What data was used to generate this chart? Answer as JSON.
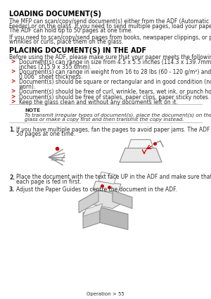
{
  "page_bg": "#ffffff",
  "title1": "LOADING DOCUMENT(S)",
  "para1_lines": [
    "The MFP can scan/copy/send document(s) either from the ADF (Automatic Document",
    "Feeder) or on the glass. If you need to send multiple pages, load your papers in the ADF.",
    "The ADF can hold up to 50 pages at one time."
  ],
  "para2_lines": [
    "If you need to scan/copy/send pages from books, newspaper clippings, or paper with",
    "wrinkles or curls, place them on the glass."
  ],
  "title2": "PLACING DOCUMENT(S) IN THE ADF",
  "before_list": "Before using the ADF, please make sure that your paper meets the following specifications:",
  "bullet_lines": [
    [
      "Document(s) can range in size from 4.5 x 5.5 inches (114.3 x 139.7mm) to 8.5 x 14",
      "inches (215.9 x 355.6mm)."
    ],
    [
      "Document(s) can range in weight from 16 to 28 lbs (60 - 120 g/m²) and 0.002” to",
      "0.006” sheet thickness."
    ],
    [
      "Document(s) should be square or rectangular and in good condition (not fragile or",
      "worn)."
    ],
    [
      "Document(s) should be free of curl, wrinkle, tears, wet ink, or punch holes."
    ],
    [
      "Document(s) should be free of staples, paper clips, paper sticky notes."
    ],
    [
      "Keep the glass clean and without any documents left on it."
    ]
  ],
  "note_title": "NOTE",
  "note_lines": [
    "To transmit irregular types of document(s), place the document(s) on the",
    "glass or make a copy first and then transmit the copy instead."
  ],
  "step1_lines": [
    "If you have multiple pages, fan the pages to avoid paper jams. The ADF holds up to",
    "50 pages at one time."
  ],
  "step2_lines": [
    "Place the document with the text face UP in the ADF and make sure that the top of",
    "each page is fed in first."
  ],
  "step3_lines": [
    "Adjust the Paper Guides to centre the document in the ADF."
  ],
  "footer": "Operation > 55",
  "text_color": "#2d2d2d",
  "bullet_color": "#cc0000",
  "title_color": "#000000",
  "line_color": "#aaaaaa",
  "sketch_color": "#888888",
  "body_font": 5.5,
  "title_font": 7.0,
  "footer_font": 5.0,
  "note_font": 5.2
}
